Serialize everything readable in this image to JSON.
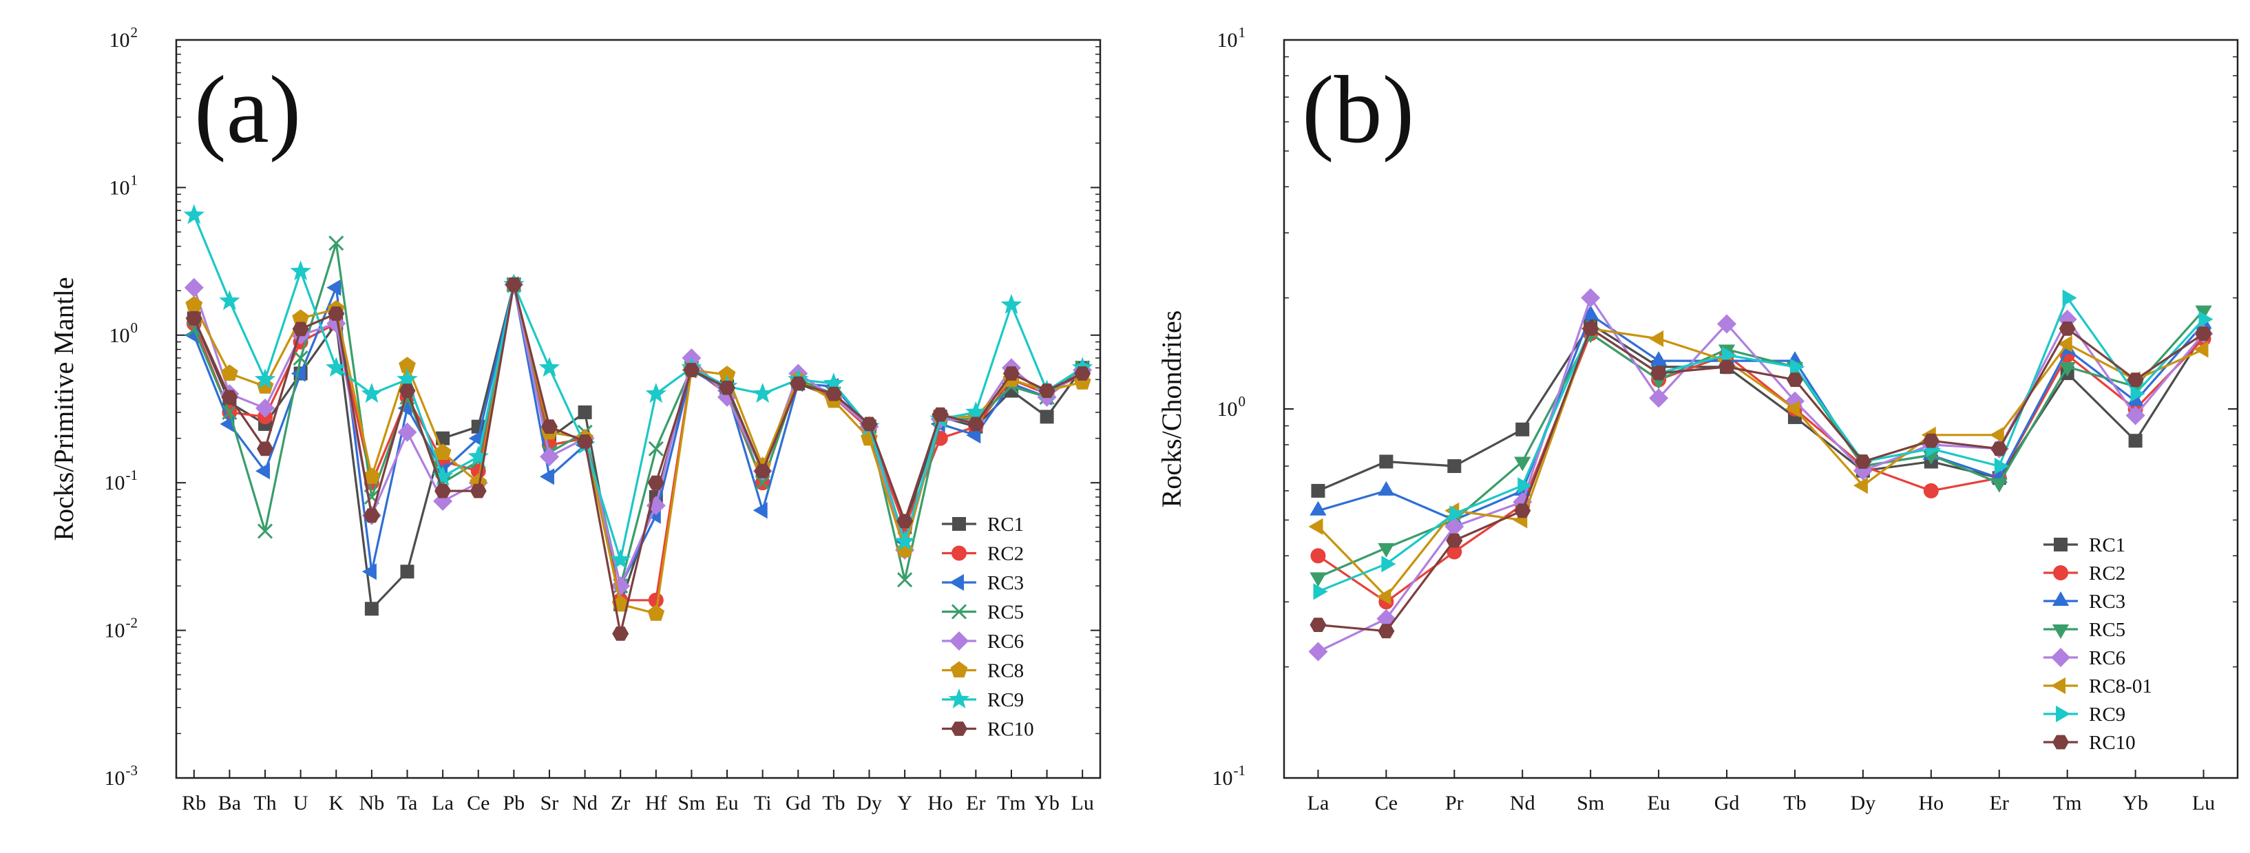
{
  "chart_data": [
    {
      "type": "line",
      "panel_label": "(a)",
      "ylabel": "Rocks/Primitive Mantle",
      "xlabel": "",
      "yscale": "log",
      "ylim": [
        0.001,
        100
      ],
      "y_tick_labels": [
        {
          "base": "10",
          "exp": "-3"
        },
        {
          "base": "10",
          "exp": "-2"
        },
        {
          "base": "10",
          "exp": "-1"
        },
        {
          "base": "10",
          "exp": "0"
        },
        {
          "base": "10",
          "exp": "1"
        },
        {
          "base": "10",
          "exp": "2"
        }
      ],
      "legend_position": "bottom-right",
      "categories": [
        "Rb",
        "Ba",
        "Th",
        "U",
        "K",
        "Nb",
        "Ta",
        "La",
        "Ce",
        "Pb",
        "Sr",
        "Nd",
        "Zr",
        "Hf",
        "Sm",
        "Eu",
        "Ti",
        "Gd",
        "Tb",
        "Dy",
        "Y",
        "Ho",
        "Er",
        "Tm",
        "Yb",
        "Lu"
      ],
      "series": [
        {
          "name": "RC1",
          "color": "#4d4d4d",
          "marker": "square",
          "values": [
            1.3,
            0.35,
            0.25,
            0.55,
            1.2,
            0.014,
            0.025,
            0.2,
            0.24,
            2.2,
            0.2,
            0.3,
            0.015,
            0.08,
            0.6,
            0.45,
            0.12,
            0.47,
            0.38,
            0.24,
            0.05,
            0.28,
            0.24,
            0.42,
            0.28,
            0.6
          ]
        },
        {
          "name": "RC2",
          "color": "#e8403a",
          "marker": "circle",
          "values": [
            1.2,
            0.3,
            0.28,
            0.9,
            1.2,
            0.1,
            0.38,
            0.14,
            0.12,
            2.2,
            0.18,
            0.2,
            0.016,
            0.016,
            0.6,
            0.4,
            0.1,
            0.5,
            0.38,
            0.23,
            0.05,
            0.2,
            0.24,
            0.5,
            0.4,
            0.55
          ]
        },
        {
          "name": "RC3",
          "color": "#2f6fd6",
          "marker": "triangle-left",
          "values": [
            1.0,
            0.25,
            0.12,
            0.55,
            2.1,
            0.025,
            0.32,
            0.12,
            0.2,
            2.2,
            0.11,
            0.18,
            0.02,
            0.06,
            0.58,
            0.42,
            0.065,
            0.47,
            0.45,
            0.24,
            0.04,
            0.25,
            0.21,
            0.47,
            0.38,
            0.58
          ]
        },
        {
          "name": "RC5",
          "color": "#3a9e6a",
          "marker": "x",
          "values": [
            1.1,
            0.3,
            0.047,
            0.7,
            4.2,
            0.08,
            0.38,
            0.1,
            0.14,
            2.2,
            0.16,
            0.22,
            0.02,
            0.17,
            0.6,
            0.42,
            0.1,
            0.5,
            0.4,
            0.24,
            0.022,
            0.27,
            0.27,
            0.45,
            0.38,
            0.6
          ]
        },
        {
          "name": "RC6",
          "color": "#b07fe0",
          "marker": "diamond",
          "values": [
            2.1,
            0.4,
            0.32,
            1.0,
            1.2,
            0.06,
            0.22,
            0.075,
            0.1,
            2.2,
            0.15,
            0.2,
            0.02,
            0.07,
            0.7,
            0.38,
            0.12,
            0.55,
            0.38,
            0.24,
            0.035,
            0.27,
            0.26,
            0.6,
            0.38,
            0.58
          ]
        },
        {
          "name": "RC8",
          "color": "#c9930f",
          "marker": "pentagon",
          "values": [
            1.6,
            0.55,
            0.45,
            1.3,
            1.5,
            0.11,
            0.62,
            0.16,
            0.1,
            2.2,
            0.22,
            0.2,
            0.015,
            0.013,
            0.58,
            0.54,
            0.13,
            0.5,
            0.36,
            0.2,
            0.035,
            0.28,
            0.28,
            0.5,
            0.42,
            0.48
          ]
        },
        {
          "name": "RC9",
          "color": "#1cc8c8",
          "marker": "star",
          "values": [
            6.5,
            1.7,
            0.5,
            2.7,
            0.6,
            0.4,
            0.5,
            0.11,
            0.15,
            2.2,
            0.6,
            0.18,
            0.03,
            0.4,
            0.6,
            0.45,
            0.4,
            0.5,
            0.47,
            0.24,
            0.04,
            0.27,
            0.3,
            1.6,
            0.42,
            0.6
          ]
        },
        {
          "name": "RC10",
          "color": "#7d3f3f",
          "marker": "hexagon",
          "values": [
            1.3,
            0.38,
            0.17,
            1.1,
            1.4,
            0.06,
            0.42,
            0.088,
            0.088,
            2.2,
            0.24,
            0.19,
            0.0095,
            0.1,
            0.58,
            0.44,
            0.12,
            0.47,
            0.4,
            0.25,
            0.055,
            0.29,
            0.25,
            0.55,
            0.42,
            0.55
          ]
        }
      ]
    },
    {
      "type": "line",
      "panel_label": "(b)",
      "ylabel": "Rocks/Chondrites",
      "xlabel": "",
      "yscale": "log",
      "ylim": [
        0.1,
        10
      ],
      "y_tick_labels": [
        {
          "base": "10",
          "exp": "-1"
        },
        {
          "base": "10",
          "exp": "0"
        },
        {
          "base": "10",
          "exp": "1"
        }
      ],
      "legend_position": "bottom-right",
      "categories": [
        "La",
        "Ce",
        "Pr",
        "Nd",
        "Sm",
        "Eu",
        "Gd",
        "Tb",
        "Dy",
        "Ho",
        "Er",
        "Tm",
        "Yb",
        "Lu"
      ],
      "series": [
        {
          "name": "RC1",
          "color": "#4d4d4d",
          "marker": "square",
          "values": [
            0.6,
            0.72,
            0.7,
            0.88,
            1.7,
            1.3,
            1.3,
            0.95,
            0.68,
            0.72,
            0.65,
            1.25,
            0.82,
            1.6
          ]
        },
        {
          "name": "RC2",
          "color": "#e8403a",
          "marker": "circle",
          "values": [
            0.4,
            0.3,
            0.41,
            0.55,
            1.6,
            1.2,
            1.4,
            1.0,
            0.7,
            0.6,
            0.65,
            1.4,
            1.0,
            1.55
          ]
        },
        {
          "name": "RC3",
          "color": "#2f6fd6",
          "marker": "triangle-up",
          "values": [
            0.53,
            0.6,
            0.5,
            0.6,
            1.8,
            1.35,
            1.35,
            1.35,
            0.7,
            0.75,
            0.65,
            1.45,
            1.05,
            1.7
          ]
        },
        {
          "name": "RC5",
          "color": "#3a9e6a",
          "marker": "triangle-down",
          "values": [
            0.35,
            0.42,
            0.5,
            0.72,
            1.6,
            1.2,
            1.45,
            1.3,
            0.7,
            0.75,
            0.63,
            1.3,
            1.15,
            1.85
          ]
        },
        {
          "name": "RC6",
          "color": "#b07fe0",
          "marker": "diamond",
          "values": [
            0.22,
            0.27,
            0.48,
            0.56,
            2.0,
            1.07,
            1.7,
            1.05,
            0.68,
            0.8,
            0.78,
            1.75,
            0.96,
            1.6
          ]
        },
        {
          "name": "RC8-01",
          "color": "#c9930f",
          "marker": "triangle-left",
          "values": [
            0.48,
            0.31,
            0.53,
            0.5,
            1.65,
            1.55,
            1.35,
            1.0,
            0.62,
            0.85,
            0.85,
            1.5,
            1.2,
            1.45
          ]
        },
        {
          "name": "RC9",
          "color": "#1cc8c8",
          "marker": "triangle-right",
          "values": [
            0.32,
            0.38,
            0.52,
            0.62,
            1.65,
            1.25,
            1.4,
            1.3,
            0.72,
            0.78,
            0.7,
            2.0,
            1.1,
            1.75
          ]
        },
        {
          "name": "RC10",
          "color": "#7d3f3f",
          "marker": "hexagon",
          "values": [
            0.26,
            0.25,
            0.44,
            0.53,
            1.65,
            1.25,
            1.3,
            1.2,
            0.72,
            0.82,
            0.78,
            1.65,
            1.2,
            1.6
          ]
        }
      ]
    }
  ]
}
